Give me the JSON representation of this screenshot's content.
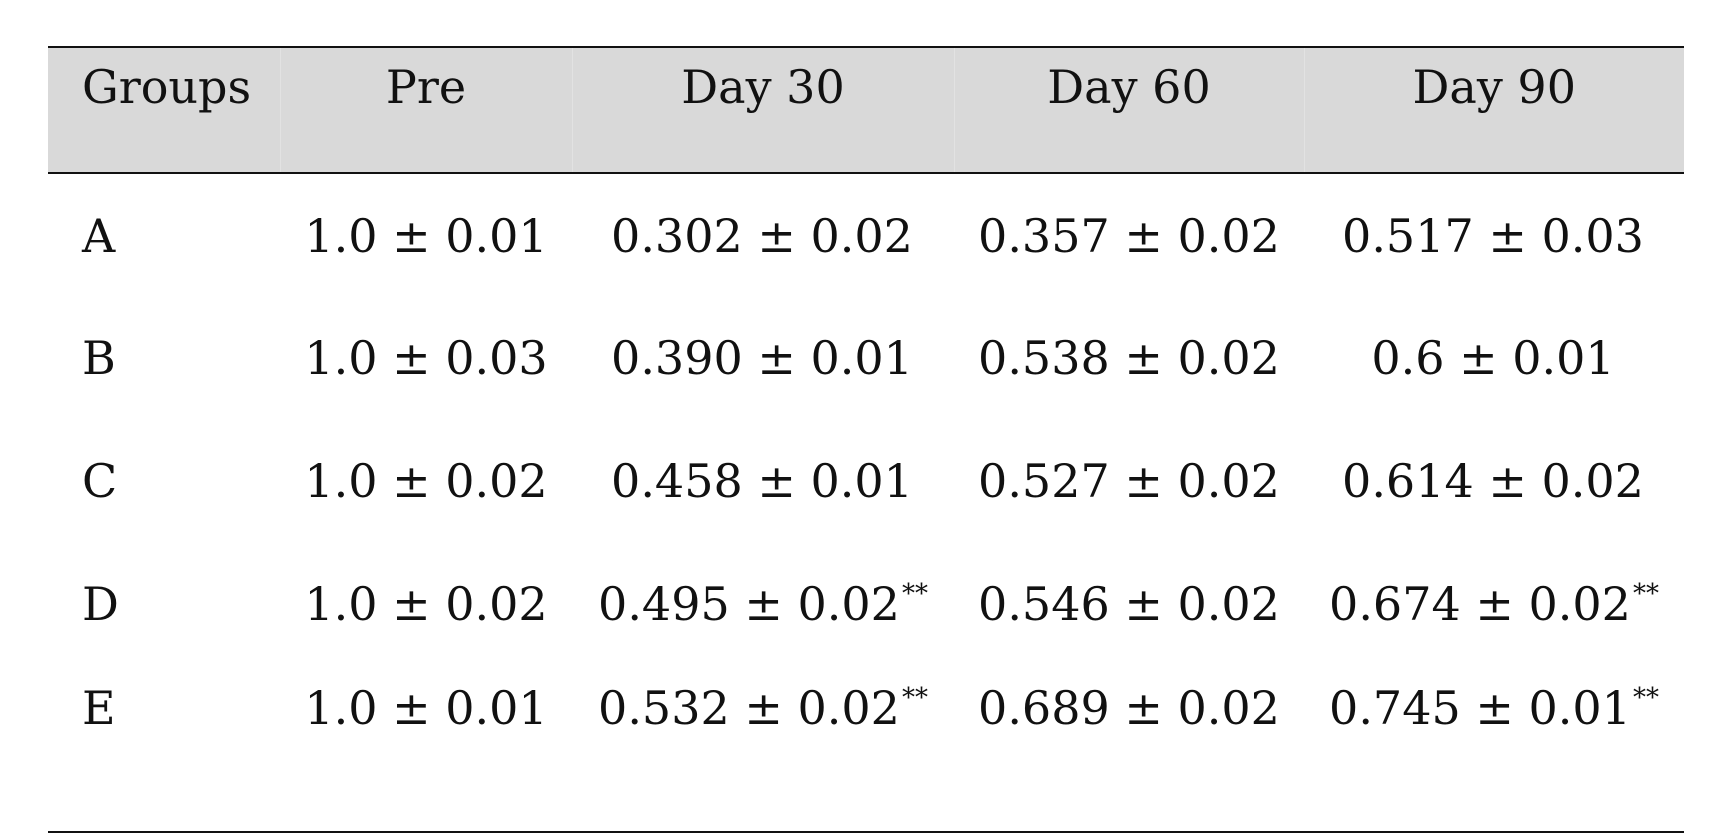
{
  "table": {
    "headers": [
      "Groups",
      "Pre",
      "Day 30",
      "Day 60",
      "Day 90"
    ],
    "rows": [
      {
        "group": "A",
        "pre": "1.0 ± 0.01",
        "day30": "0.302 ± 0.02",
        "day30_mark": "",
        "day60": "0.357 ± 0.02",
        "day90": "0.517 ± 0.03",
        "day90_mark": ""
      },
      {
        "group": "B",
        "pre": "1.0 ± 0.03",
        "day30": "0.390 ± 0.01",
        "day30_mark": "",
        "day60": "0.538 ± 0.02",
        "day90": "0.6 ± 0.01",
        "day90_mark": ""
      },
      {
        "group": "C",
        "pre": "1.0 ± 0.02",
        "day30": "0.458 ± 0.01",
        "day30_mark": "",
        "day60": "0.527 ± 0.02",
        "day90": "0.614 ± 0.02",
        "day90_mark": ""
      },
      {
        "group": "D",
        "pre": "1.0 ± 0.02",
        "day30": "0.495 ± 0.02",
        "day30_mark": "**",
        "day60": "0.546 ± 0.02",
        "day90": "0.674 ± 0.02",
        "day90_mark": "**"
      },
      {
        "group": "E",
        "pre": "1.0 ± 0.01",
        "day30": "0.532 ± 0.02",
        "day30_mark": "**",
        "day60": "0.689 ± 0.02",
        "day90": "0.745 ± 0.01",
        "day90_mark": "**"
      }
    ]
  },
  "colors": {
    "header_background": "#d9d9d9",
    "rule": "#111111",
    "text": "#111111"
  }
}
